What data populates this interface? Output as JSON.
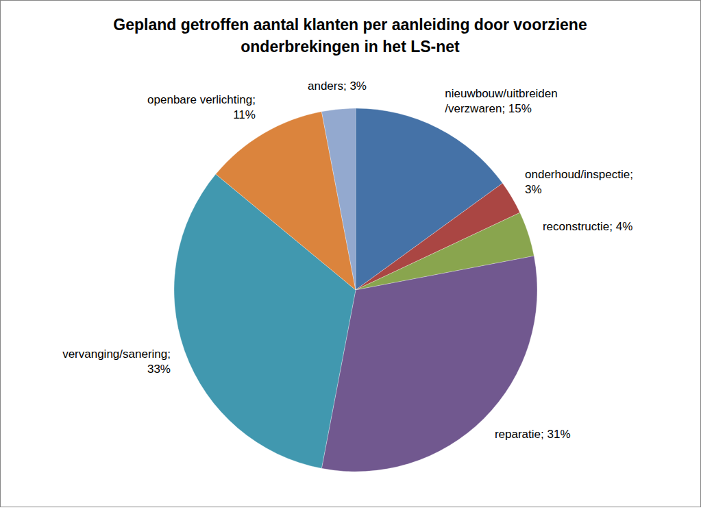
{
  "chart_data": {
    "type": "pie",
    "title": "Gepland getroffen aantal klanten per aanleiding door voorziene\nonderbrekingen in het LS-net",
    "values": [
      15,
      3,
      4,
      31,
      33,
      11,
      3
    ],
    "value_labels": [
      "nieuwbouw/uitbreiden\n/verzwaren; 15%",
      "onderhoud/inspectie;\n3%",
      "reconstructie; 4%",
      "reparatie; 31%",
      "vervanging/sanering;\n33%",
      "openbare verlichting;\n11%",
      "anders; 3%"
    ],
    "colors": [
      "#4572a7",
      "#aa4643",
      "#89a54e",
      "#71588f",
      "#4198af",
      "#db843d",
      "#93a9cf"
    ],
    "data_labels": true
  }
}
